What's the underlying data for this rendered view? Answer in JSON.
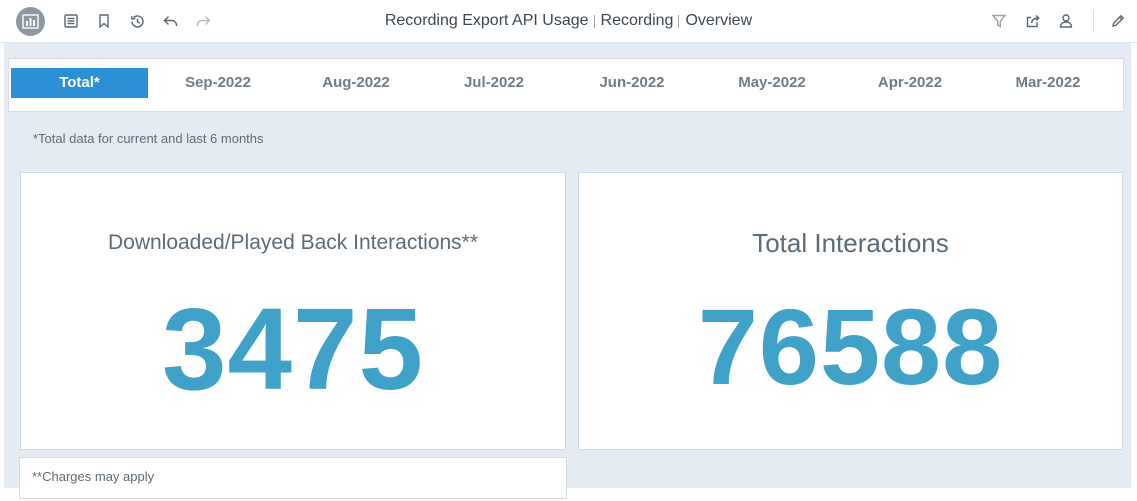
{
  "toolbar": {
    "title_part1": "Recording Export API Usage",
    "title_part2": "Recording",
    "title_part3": "Overview"
  },
  "tabs": [
    {
      "label": "Total*",
      "active": true
    },
    {
      "label": "Sep-2022",
      "active": false
    },
    {
      "label": "Aug-2022",
      "active": false
    },
    {
      "label": "Jul-2022",
      "active": false
    },
    {
      "label": "Jun-2022",
      "active": false
    },
    {
      "label": "May-2022",
      "active": false
    },
    {
      "label": "Apr-2022",
      "active": false
    },
    {
      "label": "Mar-2022",
      "active": false
    }
  ],
  "note": "*Total data for current and last 6 months",
  "cards": {
    "downloaded": {
      "title": "Downloaded/Played Back Interactions**",
      "value": "3475"
    },
    "total": {
      "title": "Total Interactions",
      "value": "76588"
    }
  },
  "footer_note": "**Charges may apply",
  "colors": {
    "accent": "#2b8fd6",
    "kpi_value": "#41a2c9",
    "background": "#e5ebf3"
  },
  "icons": [
    "dashboard-logo-icon",
    "list-icon",
    "bookmark-icon",
    "history-icon",
    "undo-icon",
    "redo-icon",
    "filter-icon",
    "share-icon",
    "user-icon",
    "edit-pencil-icon"
  ]
}
